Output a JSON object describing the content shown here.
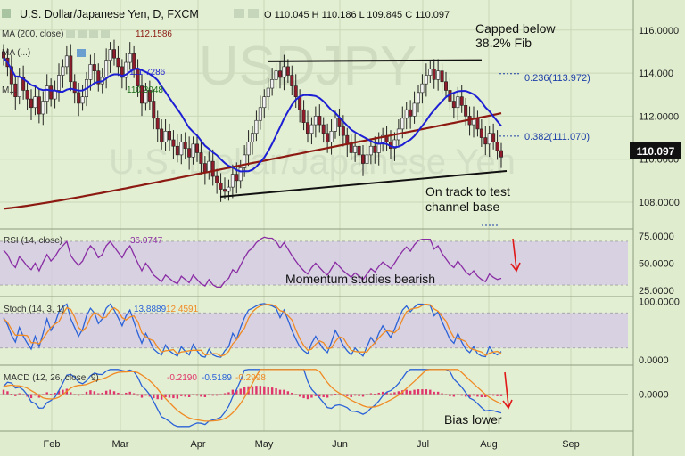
{
  "header": {
    "title": "U.S. Dollar/Japanese Yen, D, FXCM",
    "ohlc": "O 110.045 H 110.186 L 109.845 C 110.097"
  },
  "watermark": {
    "line1": "USDJPY",
    "line2": "U.S. Dollar/Japanese Yen"
  },
  "indicators": {
    "ma1": {
      "label": "MA (200, close)",
      "value": "112.1586"
    },
    "ma2": {
      "label": "MA (...)",
      "value": "111.7286"
    },
    "ma3": {
      "label": "M...",
      "value": "110.3048"
    }
  },
  "colors": {
    "background": "#dfeccd",
    "grid": "#c9d8b8",
    "candle": "#8e1c2a",
    "ma200": "#8c1a12",
    "ma_blue": "#1d1fd4",
    "rsi": "#8a2ca4",
    "panel_band": "#d3c9e5",
    "stoch_k": "#2b62d8",
    "stoch_d": "#f08a24",
    "macd_hist": "#e0356c"
  },
  "chart_data": [
    {
      "type": "candlestick",
      "title": "U.S. Dollar/Japanese Yen, D, FXCM",
      "x_ticks": [
        "Feb",
        "Mar",
        "Apr",
        "May",
        "Jun",
        "Jul",
        "Aug",
        "Sep"
      ],
      "y_ticks": [
        "116.0000",
        "114.000",
        "112.0000",
        "110.0000",
        "108.0000"
      ],
      "ylim": [
        106.8,
        117.4
      ],
      "last_price": "110.097",
      "closes": [
        114.7,
        114.3,
        113.5,
        112.9,
        113.8,
        113.2,
        112.8,
        112.4,
        112.9,
        112.1,
        112.7,
        113.4,
        112.8,
        113.2,
        113.9,
        114.3,
        114.8,
        113.6,
        113.1,
        112.6,
        112.9,
        113.7,
        114.4,
        114.1,
        113.5,
        113.8,
        114.6,
        115.1,
        114.7,
        114.3,
        113.8,
        114.5,
        114.9,
        114.2,
        113.4,
        112.6,
        113.2,
        112.7,
        111.9,
        111.4,
        110.8,
        111.3,
        110.9,
        110.6,
        110.2,
        110.8,
        110.5,
        110.1,
        110.7,
        110.3,
        109.8,
        109.4,
        109.9,
        109.2,
        108.9,
        108.6,
        108.5,
        108.7,
        109.3,
        109.0,
        109.6,
        110.2,
        110.8,
        111.2,
        111.8,
        112.4,
        112.9,
        113.3,
        113.7,
        114.1,
        113.8,
        114.3,
        113.9,
        113.4,
        112.9,
        112.3,
        111.7,
        111.2,
        111.6,
        112.0,
        111.6,
        111.2,
        110.8,
        111.3,
        111.9,
        111.5,
        111.1,
        110.7,
        110.3,
        110.6,
        110.2,
        109.8,
        110.2,
        110.6,
        110.3,
        110.7,
        111.1,
        110.8,
        110.5,
        110.9,
        111.4,
        111.9,
        112.3,
        112.0,
        112.6,
        113.1,
        113.5,
        113.9,
        114.2,
        113.7,
        114.1,
        113.6,
        113.2,
        112.7,
        112.4,
        112.9,
        112.5,
        112.0,
        111.6,
        111.9,
        111.4,
        111.0,
        110.7,
        111.2,
        110.8,
        110.4,
        110.1
      ],
      "ma200": {
        "label": "MA (200, close)",
        "value": "112.1586"
      },
      "channel": {
        "upper": [
          114.55,
          114.6
        ],
        "lower": [
          108.25,
          109.45
        ]
      },
      "fib_levels": [
        {
          "label": "0.236(113.972)",
          "value": 113.972
        },
        {
          "label": "0.382(111.070)",
          "value": 111.07
        }
      ],
      "annotations": [
        {
          "text": "Capped below",
          "text2": "38.2% Fib"
        },
        {
          "text": "On track to test",
          "text2": "channel base"
        }
      ]
    },
    {
      "type": "line",
      "title": "RSI (14, close)",
      "value": "36.0747",
      "y_ticks": [
        "75.0000",
        "50.0000",
        "25.0000"
      ],
      "ylim": [
        20,
        80
      ],
      "band": [
        30,
        70
      ],
      "values": [
        62,
        58,
        50,
        46,
        56,
        52,
        47,
        44,
        50,
        43,
        51,
        58,
        52,
        56,
        62,
        66,
        70,
        57,
        52,
        48,
        52,
        60,
        66,
        62,
        55,
        58,
        66,
        70,
        65,
        60,
        55,
        62,
        66,
        58,
        50,
        43,
        50,
        45,
        39,
        36,
        33,
        39,
        36,
        33,
        31,
        38,
        35,
        32,
        39,
        35,
        31,
        29,
        35,
        30,
        28,
        28,
        33,
        36,
        44,
        41,
        48,
        55,
        61,
        64,
        69,
        72,
        74,
        73,
        73,
        70,
        64,
        69,
        63,
        57,
        52,
        47,
        43,
        40,
        46,
        50,
        46,
        42,
        39,
        45,
        51,
        47,
        43,
        40,
        37,
        41,
        38,
        35,
        40,
        45,
        42,
        47,
        51,
        48,
        45,
        50,
        56,
        61,
        65,
        61,
        67,
        71,
        72,
        72,
        72,
        63,
        66,
        59,
        54,
        49,
        46,
        52,
        47,
        42,
        39,
        43,
        38,
        35,
        33,
        40,
        37,
        35,
        36
      ],
      "annotation": "Momentum studies bearish"
    },
    {
      "type": "line",
      "title": "Stoch (14, 3, 1)",
      "values_text": [
        "13.8889",
        "12.4591"
      ],
      "y_ticks": [
        "100.0000",
        "0.0000"
      ],
      "ylim": [
        -8,
        105
      ],
      "band": [
        20,
        80
      ],
      "k": [
        72,
        60,
        42,
        30,
        55,
        40,
        28,
        18,
        40,
        22,
        45,
        70,
        50,
        62,
        82,
        90,
        95,
        70,
        55,
        40,
        52,
        75,
        88,
        80,
        62,
        70,
        88,
        95,
        85,
        72,
        58,
        75,
        85,
        65,
        45,
        28,
        45,
        32,
        18,
        12,
        8,
        25,
        15,
        10,
        6,
        22,
        14,
        8,
        26,
        15,
        6,
        4,
        18,
        8,
        5,
        4,
        15,
        22,
        45,
        35,
        55,
        72,
        85,
        88,
        92,
        95,
        96,
        94,
        92,
        88,
        72,
        85,
        68,
        50,
        35,
        22,
        15,
        10,
        28,
        40,
        28,
        18,
        12,
        30,
        50,
        38,
        24,
        15,
        8,
        20,
        12,
        6,
        22,
        38,
        28,
        45,
        58,
        48,
        38,
        52,
        70,
        85,
        92,
        82,
        90,
        95,
        95,
        94,
        93,
        75,
        82,
        65,
        50,
        35,
        28,
        45,
        30,
        18,
        12,
        22,
        10,
        6,
        5,
        22,
        12,
        8,
        14
      ],
      "d": [
        70,
        64,
        52,
        42,
        42,
        42,
        41,
        29,
        29,
        27,
        36,
        46,
        55,
        61,
        65,
        78,
        89,
        86,
        73,
        55,
        49,
        56,
        72,
        81,
        77,
        71,
        73,
        84,
        89,
        84,
        72,
        68,
        73,
        75,
        65,
        46,
        39,
        35,
        32,
        21,
        13,
        15,
        16,
        17,
        10,
        13,
        14,
        15,
        16,
        16,
        16,
        8,
        9,
        10,
        10,
        6,
        8,
        14,
        27,
        34,
        45,
        54,
        71,
        82,
        88,
        92,
        94,
        95,
        94,
        91,
        84,
        82,
        75,
        68,
        51,
        36,
        24,
        16,
        18,
        26,
        32,
        29,
        19,
        20,
        31,
        39,
        37,
        26,
        16,
        14,
        13,
        13,
        13,
        22,
        29,
        37,
        44,
        50,
        48,
        46,
        53,
        69,
        82,
        86,
        88,
        89,
        93,
        95,
        94,
        87,
        83,
        74,
        66,
        50,
        38,
        36,
        34,
        31,
        20,
        17,
        15,
        13,
        7,
        11,
        13,
        14,
        11
      ]
    },
    {
      "type": "line",
      "title": "MACD (12, 26, close, 9)",
      "values_text": [
        "-0.2190",
        "-0.5189",
        "-0.2998"
      ],
      "y_ticks": [
        "0.0000"
      ],
      "ylim": [
        -1.45,
        1.1
      ],
      "histogram": [
        0.18,
        0.12,
        0.02,
        -0.08,
        0.04,
        -0.04,
        -0.1,
        -0.16,
        -0.06,
        -0.14,
        -0.04,
        0.08,
        0.02,
        0.06,
        0.14,
        0.18,
        0.22,
        0.08,
        0.0,
        -0.06,
        0.0,
        0.1,
        0.16,
        0.12,
        0.04,
        0.06,
        0.14,
        0.18,
        0.12,
        0.06,
        0.0,
        0.06,
        0.1,
        0.04,
        -0.06,
        -0.14,
        -0.06,
        -0.1,
        -0.16,
        -0.2,
        -0.22,
        -0.12,
        -0.14,
        -0.16,
        -0.18,
        -0.08,
        -0.1,
        -0.12,
        -0.04,
        -0.06,
        -0.1,
        -0.12,
        -0.02,
        -0.06,
        -0.06,
        -0.04,
        0.04,
        0.08,
        0.18,
        0.16,
        0.22,
        0.28,
        0.32,
        0.32,
        0.34,
        0.34,
        0.32,
        0.3,
        0.27,
        0.24,
        0.18,
        0.18,
        0.12,
        0.06,
        -0.02,
        -0.1,
        -0.16,
        -0.2,
        -0.14,
        -0.08,
        -0.1,
        -0.12,
        -0.14,
        -0.06,
        0.02,
        -0.02,
        -0.06,
        -0.08,
        -0.12,
        -0.06,
        -0.08,
        -0.1,
        -0.02,
        0.04,
        0.02,
        0.06,
        0.1,
        0.08,
        0.04,
        0.08,
        0.12,
        0.16,
        0.18,
        0.14,
        0.18,
        0.2,
        0.2,
        0.2,
        0.18,
        0.1,
        0.1,
        0.04,
        -0.02,
        -0.08,
        -0.1,
        -0.04,
        -0.06,
        -0.1,
        -0.12,
        -0.06,
        -0.1,
        -0.12,
        -0.12,
        -0.04,
        -0.06,
        -0.08,
        -0.08
      ]
    }
  ],
  "panel_annotations": {
    "bias": "Bias lower"
  }
}
